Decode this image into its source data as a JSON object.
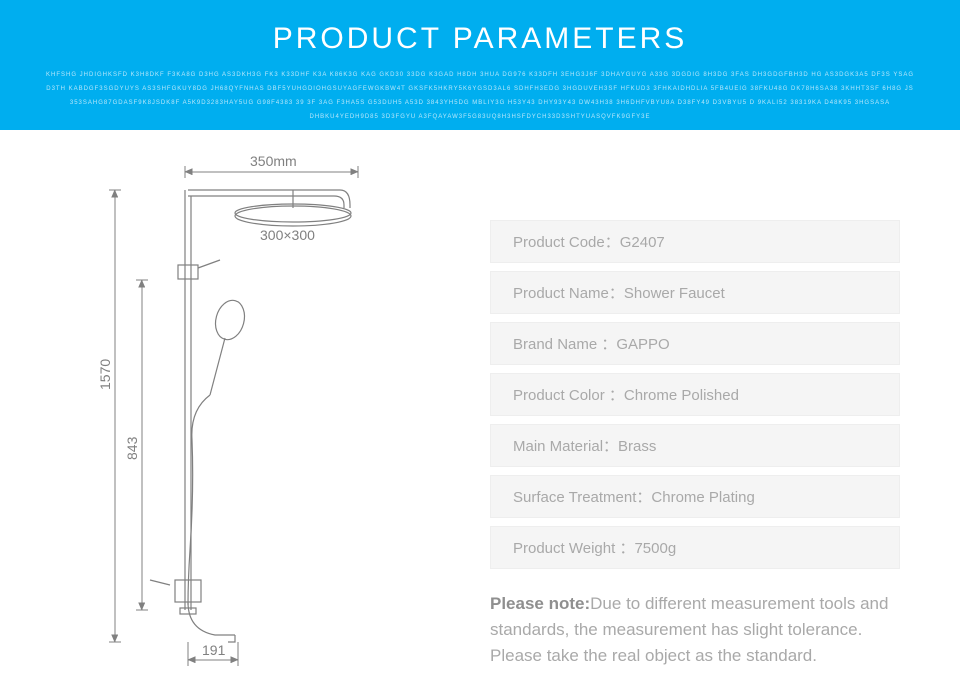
{
  "banner": {
    "title": "PRODUCT PARAMETERS",
    "subtext": "KHFSHG JHDIGHKSFD K3H8DKF F3KA8G D3HG AS3DKH3G FK3 K33DHF K3A K86K3G KAG GKD30 33DG K3GAD H8DH 3HUA DG976 K33DFH 3EHG3J6F 3DHAYGUYG A33G 3DGDIG 8H3DG\n3FAS DH3GDGFBH3D HG AS3DGK3A5 DF3S YSAG D3TH KABDGF3SGDYUYS AS3SHFGKUY8DG JH68QYFNHAS DBF5YUHGDIOHGSUYAGFEWGKBW4T GKSFK5HKRY5K6YGSD3AL6 SDHFH3EDG 3HGDUVEH3SF HFKUD3 3FHKAIDHDLIA 5FB4UEIG 38FKU48G DK78H6SA38 3KHHT3SF 6H8G JS 353SAHG87GDASF9K8JSDK8F A5K9D3283HAY5UG G98F4383 39\n3F 3AG F3HA5S G53DUH5 A53D 3843YH5DG MBLIY3G H53Y43 DHY93Y43 DW43H38 3H6DHFVBYU8A D38FY49 D3VBYU5 D 9KALI52 38319KA D48K95 3HGSASA DHBKU4YEDH9D85 3D3FGYU A3FQAYAW3F5G83UQ8H3HSFDYCH33D3SHTYUASQVFK9GFY3E"
  },
  "specs": [
    {
      "label": "Product Code：",
      "value": "G2407"
    },
    {
      "label": "Product Name：",
      "value": "Shower Faucet"
    },
    {
      "label": "Brand Name ：",
      "value": "GAPPO"
    },
    {
      "label": "Product Color ：",
      "value": "Chrome Polished"
    },
    {
      "label": "Main Material：",
      "value": "Brass"
    },
    {
      "label": "Surface Treatment：",
      "value": "Chrome Plating"
    },
    {
      "label": "Product Weight ：",
      "value": "7500g"
    }
  ],
  "note": {
    "strong": "Please note:",
    "text": "Due to different measurement tools and standards, the measurement has slight tolerance. Please take the real object as the standard."
  },
  "diagram": {
    "dim_top": "350mm",
    "dim_head": "300×300",
    "dim_height": "1570",
    "dim_lower": "843",
    "dim_spout": "191",
    "stroke_drawing": "#808080",
    "stroke_dim": "#808080",
    "fill_bg": "none"
  },
  "colors": {
    "banner_bg": "#00aeef",
    "banner_title": "#ffffff",
    "banner_sub": "#b6e7fb",
    "row_bg": "#f5f5f5",
    "row_border": "#eeeeee",
    "text_gray": "#a9a9a9",
    "note_strong": "#8f8f8f"
  }
}
